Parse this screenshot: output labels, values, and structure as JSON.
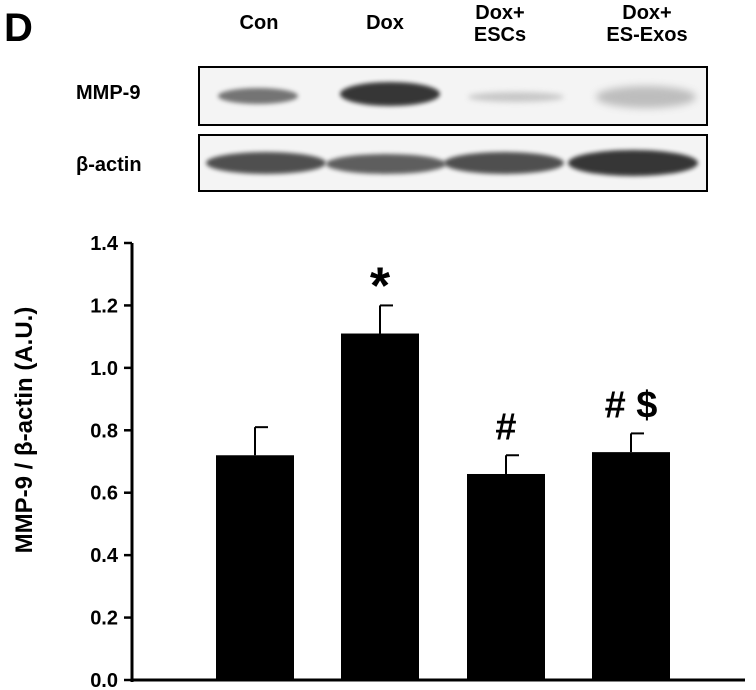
{
  "panel_letter": "D",
  "blot": {
    "lanes": [
      "Con",
      "Dox",
      "Dox+\nESCs",
      "Dox+\nES-Exos"
    ],
    "rows": [
      "MMP-9",
      "β-actin"
    ]
  },
  "chart_data": {
    "type": "bar",
    "categories": [
      "Con",
      "Dox",
      "Dox+ESCs",
      "Dox+ES-Exos"
    ],
    "values": [
      0.72,
      1.11,
      0.66,
      0.73
    ],
    "errors": [
      0.09,
      0.09,
      0.06,
      0.06
    ],
    "annotations": [
      "",
      "*",
      "#",
      "# $"
    ],
    "ylabel": "MMP-9 / β-actin (A.U.)",
    "xlabel": "",
    "title": "",
    "ylim": [
      0,
      1.4
    ],
    "yticks": [
      "0.0",
      "0.2",
      "0.4",
      "0.6",
      "0.8",
      "1.0",
      "1.2",
      "1.4"
    ],
    "bar_color": "#000000",
    "grid": false
  }
}
